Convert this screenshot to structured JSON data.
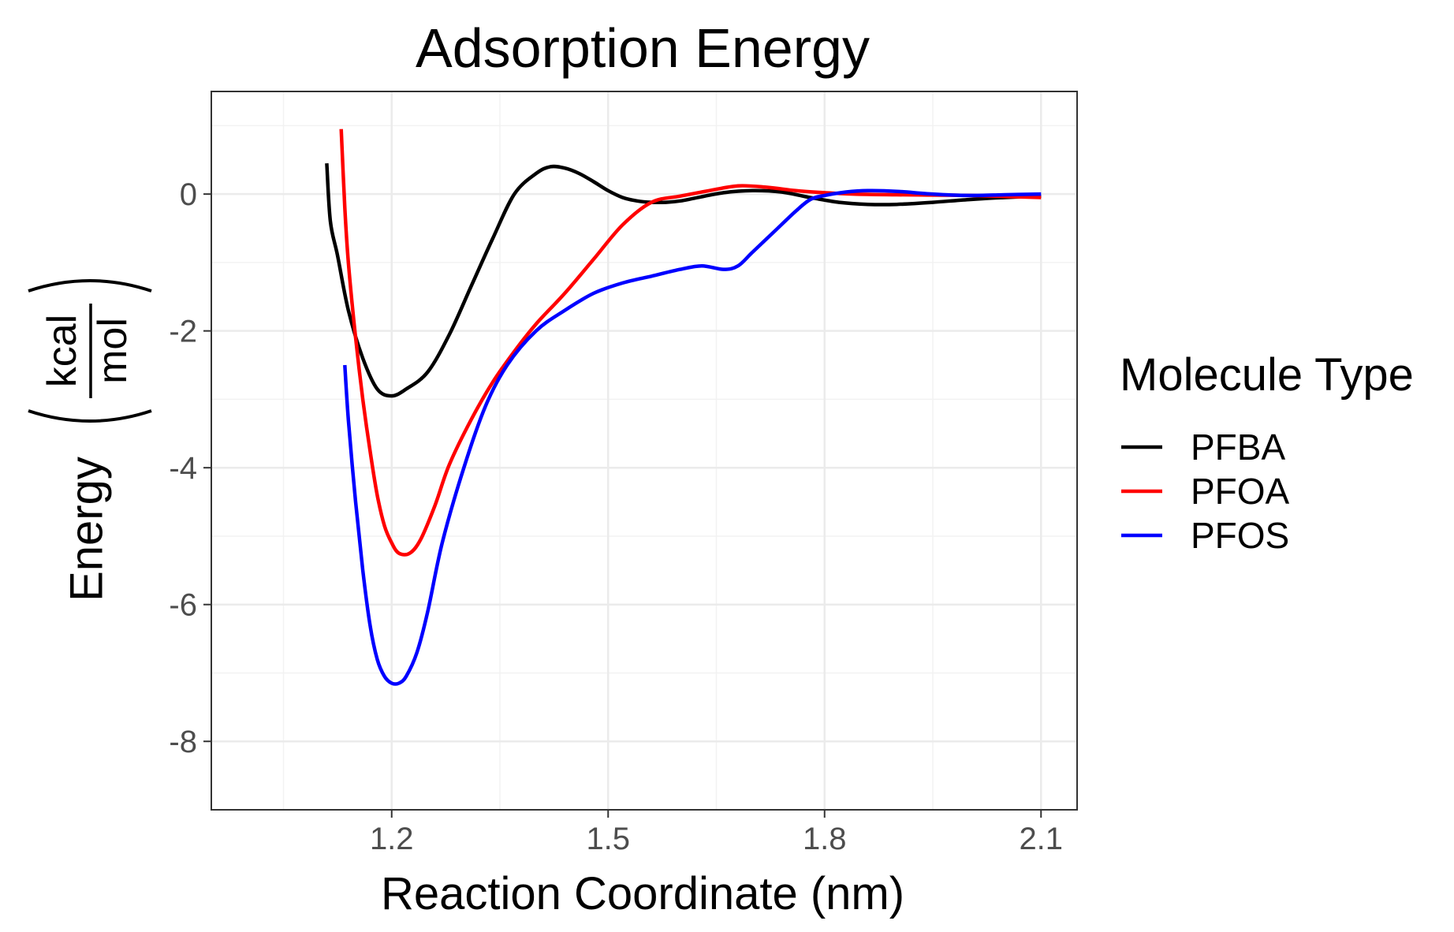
{
  "chart_data": {
    "type": "line",
    "title": "Adsorption Energy",
    "xlabel": "Reaction Coordinate (nm)",
    "ylabel": {
      "prefix": "Energy",
      "numerator": "kcal",
      "denominator": "mol"
    },
    "xlim": [
      0.95,
      2.15
    ],
    "ylim": [
      -9.0,
      1.5
    ],
    "x_ticks": [
      1.2,
      1.5,
      1.8,
      2.1
    ],
    "x_tick_labels": [
      "1.2",
      "1.5",
      "1.8",
      "2.1"
    ],
    "y_ticks": [
      -8,
      -6,
      -4,
      -2,
      0
    ],
    "y_tick_labels": [
      "-8",
      "-6",
      "-4",
      "-2",
      "0"
    ],
    "grid": true,
    "legend": {
      "title": "Molecule Type",
      "placement": "right"
    },
    "series": [
      {
        "name": "PFBA",
        "color": "#000000",
        "x": [
          1.11,
          1.115,
          1.125,
          1.14,
          1.16,
          1.18,
          1.2,
          1.22,
          1.25,
          1.28,
          1.31,
          1.34,
          1.37,
          1.4,
          1.42,
          1.44,
          1.46,
          1.48,
          1.5,
          1.52,
          1.54,
          1.56,
          1.58,
          1.6,
          1.62,
          1.66,
          1.7,
          1.74,
          1.78,
          1.82,
          1.86,
          1.9,
          1.95,
          2.0,
          2.05,
          2.1
        ],
        "y": [
          0.45,
          -0.4,
          -0.9,
          -1.7,
          -2.4,
          -2.85,
          -2.95,
          -2.85,
          -2.6,
          -2.05,
          -1.35,
          -0.65,
          0.0,
          0.3,
          0.4,
          0.38,
          0.3,
          0.18,
          0.05,
          -0.05,
          -0.1,
          -0.12,
          -0.12,
          -0.1,
          -0.06,
          0.02,
          0.05,
          0.03,
          -0.05,
          -0.12,
          -0.15,
          -0.15,
          -0.12,
          -0.08,
          -0.05,
          -0.03
        ]
      },
      {
        "name": "PFOA",
        "color": "#ff0000",
        "x": [
          1.13,
          1.135,
          1.14,
          1.15,
          1.16,
          1.17,
          1.18,
          1.19,
          1.2,
          1.21,
          1.225,
          1.24,
          1.26,
          1.28,
          1.31,
          1.34,
          1.37,
          1.4,
          1.44,
          1.48,
          1.52,
          1.56,
          1.6,
          1.64,
          1.68,
          1.72,
          1.76,
          1.8,
          1.84,
          1.9,
          2.0,
          2.1
        ],
        "y": [
          0.95,
          -0.2,
          -1.0,
          -2.1,
          -3.0,
          -3.75,
          -4.4,
          -4.85,
          -5.1,
          -5.25,
          -5.25,
          -5.05,
          -4.55,
          -3.95,
          -3.3,
          -2.75,
          -2.3,
          -1.9,
          -1.45,
          -0.95,
          -0.45,
          -0.12,
          -0.03,
          0.05,
          0.12,
          0.1,
          0.05,
          0.02,
          0.0,
          -0.01,
          -0.02,
          -0.05
        ]
      },
      {
        "name": "PFOS",
        "color": "#0000ff",
        "x": [
          1.135,
          1.14,
          1.15,
          1.16,
          1.17,
          1.18,
          1.19,
          1.2,
          1.21,
          1.22,
          1.235,
          1.25,
          1.27,
          1.3,
          1.33,
          1.36,
          1.4,
          1.44,
          1.48,
          1.52,
          1.56,
          1.6,
          1.63,
          1.66,
          1.68,
          1.7,
          1.73,
          1.76,
          1.78,
          1.8,
          1.83,
          1.86,
          1.9,
          1.95,
          2.0,
          2.05,
          2.1
        ],
        "y": [
          -2.5,
          -3.3,
          -4.5,
          -5.5,
          -6.3,
          -6.8,
          -7.05,
          -7.15,
          -7.15,
          -7.05,
          -6.7,
          -6.1,
          -5.1,
          -4.0,
          -3.1,
          -2.5,
          -2.0,
          -1.7,
          -1.45,
          -1.3,
          -1.2,
          -1.1,
          -1.05,
          -1.1,
          -1.05,
          -0.85,
          -0.55,
          -0.25,
          -0.08,
          -0.02,
          0.03,
          0.05,
          0.04,
          0.0,
          -0.02,
          -0.01,
          0.0
        ]
      }
    ]
  }
}
